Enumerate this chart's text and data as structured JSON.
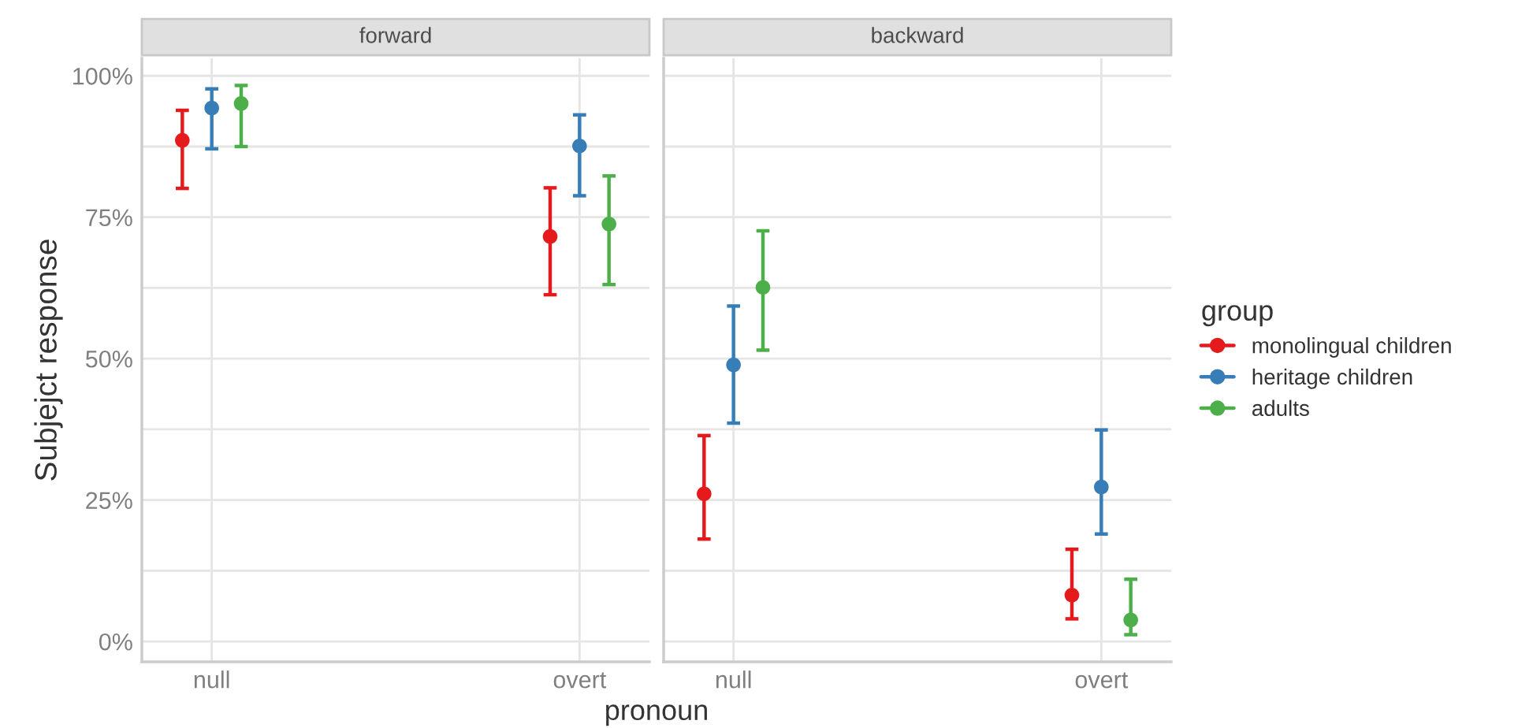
{
  "chart_data": [
    {
      "type": "scatter",
      "title": "forward",
      "ylabel": "Subjejct response",
      "xlabel": "pronoun",
      "categories": [
        "null",
        "overt"
      ],
      "ylim": [
        -3.6,
        103.1
      ],
      "yticks": [
        {
          "value": 0,
          "label": "0%"
        },
        {
          "value": 12.5,
          "label": null
        },
        {
          "value": 25,
          "label": "25%"
        },
        {
          "value": 37.5,
          "label": null
        },
        {
          "value": 50,
          "label": "50%"
        },
        {
          "value": 62.5,
          "label": null
        },
        {
          "value": 75,
          "label": "75%"
        },
        {
          "value": 87.5,
          "label": null
        },
        {
          "value": 100,
          "label": "100%"
        }
      ],
      "grid": true,
      "legend": false,
      "marker": "circle",
      "series": [
        {
          "color": "#e41a1c",
          "values": [
            88.6,
            71.6
          ],
          "errors": [
            [
              80.1,
              93.9
            ],
            [
              61.3,
              80.2
            ]
          ]
        },
        {
          "color": "#377eb8",
          "values": [
            94.3,
            87.6
          ],
          "errors": [
            [
              87.1,
              97.7
            ],
            [
              78.8,
              93.1
            ]
          ]
        },
        {
          "color": "#4daf4a",
          "values": [
            95.1,
            73.8
          ],
          "errors": [
            [
              87.5,
              98.3
            ],
            [
              63.1,
              82.3
            ]
          ]
        }
      ]
    },
    {
      "type": "scatter",
      "title": "backward",
      "categories": [
        "null",
        "overt"
      ],
      "ylim": [
        -3.6,
        103.1
      ],
      "yticks": [
        {
          "value": 0,
          "label": null
        },
        {
          "value": 12.5,
          "label": null
        },
        {
          "value": 25,
          "label": null
        },
        {
          "value": 37.5,
          "label": null
        },
        {
          "value": 50,
          "label": null
        },
        {
          "value": 62.5,
          "label": null
        },
        {
          "value": 75,
          "label": null
        },
        {
          "value": 87.5,
          "label": null
        },
        {
          "value": 100,
          "label": null
        }
      ],
      "tick_labels": "x",
      "grid": true,
      "legend": "right",
      "legend_title": "group",
      "marker": "circle",
      "series": [
        {
          "name": "monolingual children",
          "color": "#e41a1c",
          "values": [
            26.1,
            8.2
          ],
          "errors": [
            [
              18.1,
              36.4
            ],
            [
              4.0,
              16.3
            ]
          ]
        },
        {
          "name": "heritage children",
          "color": "#377eb8",
          "values": [
            48.9,
            27.3
          ],
          "errors": [
            [
              38.6,
              59.3
            ],
            [
              19.0,
              37.4
            ]
          ]
        },
        {
          "name": "adults",
          "color": "#4daf4a",
          "values": [
            62.6,
            3.8
          ],
          "errors": [
            [
              51.5,
              72.6
            ],
            [
              1.2,
              11.0
            ]
          ]
        }
      ]
    }
  ]
}
